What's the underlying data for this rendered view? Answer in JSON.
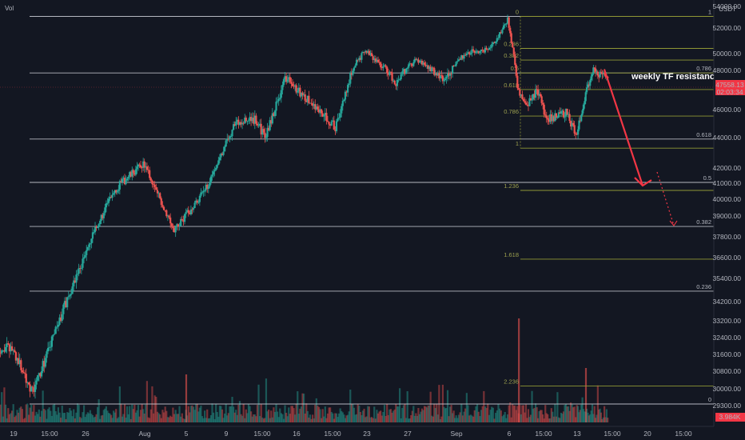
{
  "header": {
    "vol_label": "Vol"
  },
  "axis": {
    "currency": "USDT",
    "price_ticks": [
      "54000.00",
      "52000.00",
      "50000.00",
      "48000.00",
      "46000.00",
      "44000.00",
      "42000.00",
      "41000.00",
      "40000.00",
      "39000.00",
      "37800.00",
      "36600.00",
      "35400.00",
      "34200.00",
      "33200.00",
      "32400.00",
      "31600.00",
      "30800.00",
      "30000.00",
      "29300.00"
    ],
    "price_tag": "47558.13",
    "countdown": "02:03:34",
    "volume_tag": "3.984K",
    "time_ticks": [
      "19",
      "15:00",
      "26",
      "Aug",
      "5",
      "9",
      "15:00",
      "16",
      "15:00",
      "23",
      "27",
      "Sep",
      "6",
      "15:00",
      "13",
      "15:00",
      "20",
      "15:00"
    ]
  },
  "annotation": {
    "text": "weekly TF resistance"
  },
  "fib_labels": {
    "big_right": [
      "1",
      "0.786",
      "0.618",
      "0.5",
      "0.382",
      "0.236",
      "0"
    ],
    "small_left": [
      "0",
      "0.236",
      "0.382",
      "0.5",
      "0.618",
      "0.786",
      "1",
      "1.236",
      "1.618",
      "2.236"
    ]
  },
  "colors": {
    "background": "#131722",
    "up": "#26a69a",
    "down": "#ef5350",
    "fib_big": "#d1d4dc",
    "fib_small": "#8f9735",
    "arrow": "#f23645",
    "price_tag": "#f23645"
  },
  "chart_data": {
    "type": "candlestick",
    "symbol_quote": "USDT",
    "price_axis_ticks": [
      54000,
      52000,
      50000,
      48000,
      46000,
      44000,
      42000,
      41000,
      40000,
      39000,
      37800,
      36600,
      35400,
      34200,
      33200,
      32400,
      31600,
      30800,
      30000,
      29300
    ],
    "x_axis_ticks": [
      "19",
      "15:00",
      "26",
      "Aug",
      "5",
      "9",
      "15:00",
      "16",
      "15:00",
      "23",
      "27",
      "Sep",
      "6",
      "15:00",
      "13",
      "15:00",
      "20",
      "15:00"
    ],
    "last_price": 47558.13,
    "last_volume": "3.984K",
    "key_prices": {
      "cycle_low": 29300,
      "cycle_high": 52900,
      "retracement_low": 43300,
      "projected_target": 40400
    },
    "fib_retracement_big": [
      {
        "level": "1",
        "price": 53000
      },
      {
        "level": "0.786",
        "price": 47800
      },
      {
        "level": "0.618",
        "price": 43800
      },
      {
        "level": "0.5",
        "price": 41000
      },
      {
        "level": "0.382",
        "price": 38200
      },
      {
        "level": "0.236",
        "price": 34700
      },
      {
        "level": "0",
        "price": 29300
      }
    ],
    "fib_extension_small": [
      {
        "level": "0",
        "price": 53000
      },
      {
        "level": "0.236",
        "price": 50000
      },
      {
        "level": "0.382",
        "price": 48900
      },
      {
        "level": "0.5",
        "price": 47800
      },
      {
        "level": "0.618",
        "price": 46800
      },
      {
        "level": "0.786",
        "price": 45200
      },
      {
        "level": "1",
        "price": 43200
      },
      {
        "level": "1.236",
        "price": 40500
      },
      {
        "level": "1.618",
        "price": 36400
      },
      {
        "level": "2.236",
        "price": 30100
      }
    ],
    "anchors": [
      {
        "date": "Jul 19",
        "price": 31900
      },
      {
        "date": "Jul 21",
        "price": 29800
      },
      {
        "date": "Jul 26",
        "price": 36500
      },
      {
        "date": "Jul 29",
        "price": 40500
      },
      {
        "date": "Aug 1",
        "price": 42200
      },
      {
        "date": "Aug 4",
        "price": 38000
      },
      {
        "date": "Aug 7",
        "price": 40500
      },
      {
        "date": "Aug 10",
        "price": 44800
      },
      {
        "date": "Aug 12",
        "price": 45000
      },
      {
        "date": "Aug 13",
        "price": 43900
      },
      {
        "date": "Aug 15",
        "price": 47500
      },
      {
        "date": "Aug 17",
        "price": 46300
      },
      {
        "date": "Aug 19",
        "price": 45200
      },
      {
        "date": "Aug 20",
        "price": 44500
      },
      {
        "date": "Aug 22",
        "price": 48700
      },
      {
        "date": "Aug 23",
        "price": 49700
      },
      {
        "date": "Aug 26",
        "price": 47200
      },
      {
        "date": "Aug 28",
        "price": 48900
      },
      {
        "date": "Aug 31",
        "price": 47300
      },
      {
        "date": "Sep 2",
        "price": 49600
      },
      {
        "date": "Sep 4",
        "price": 49900
      },
      {
        "date": "Sep 5",
        "price": 51000
      },
      {
        "date": "Sep 6",
        "price": 52800
      },
      {
        "date": "Sep 7",
        "price": 46800
      },
      {
        "date": "Sep 8",
        "price": 45800
      },
      {
        "date": "Sep 9",
        "price": 46800
      },
      {
        "date": "Sep 10",
        "price": 45000
      },
      {
        "date": "Sep 12",
        "price": 45400
      },
      {
        "date": "Sep 13",
        "price": 44100
      },
      {
        "date": "Sep 14",
        "price": 46300
      },
      {
        "date": "Sep 15",
        "price": 48100
      },
      {
        "date": "Sep 16",
        "price": 47558
      }
    ]
  }
}
